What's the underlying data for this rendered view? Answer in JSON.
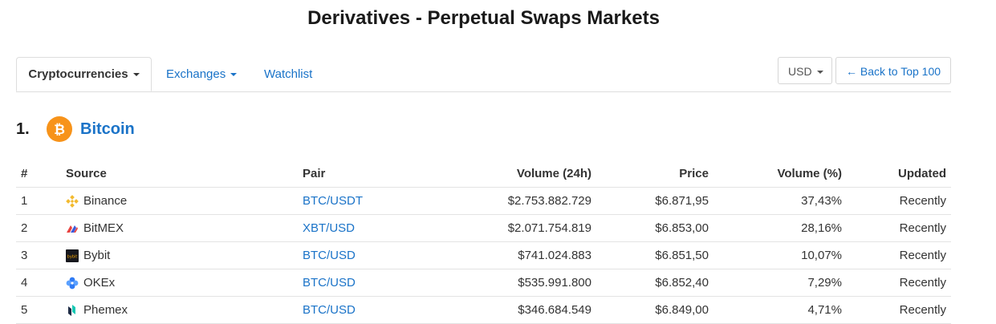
{
  "page": {
    "title": "Derivatives - Perpetual Swaps Markets"
  },
  "nav": {
    "tabs": [
      {
        "label": "Cryptocurrencies",
        "active": true,
        "dropdown": true
      },
      {
        "label": "Exchanges",
        "active": false,
        "dropdown": true
      },
      {
        "label": "Watchlist",
        "active": false,
        "dropdown": false
      }
    ],
    "currency": "USD",
    "back_label": "← Back to Top 100"
  },
  "coin": {
    "rank": "1.",
    "name": "Bitcoin",
    "icon": "bitcoin-icon",
    "color": "#f7931a"
  },
  "table": {
    "headers": {
      "rank": "#",
      "source": "Source",
      "pair": "Pair",
      "volume24h": "Volume (24h)",
      "price": "Price",
      "volume_pct": "Volume (%)",
      "updated": "Updated"
    },
    "rows": [
      {
        "rank": "1",
        "source": "Binance",
        "icon": "binance-icon",
        "pair": "BTC/USDT",
        "volume24h": "$2.753.882.729",
        "price": "$6.871,95",
        "volume_pct": "37,43%",
        "updated": "Recently"
      },
      {
        "rank": "2",
        "source": "BitMEX",
        "icon": "bitmex-icon",
        "pair": "XBT/USD",
        "volume24h": "$2.071.754.819",
        "price": "$6.853,00",
        "volume_pct": "28,16%",
        "updated": "Recently"
      },
      {
        "rank": "3",
        "source": "Bybit",
        "icon": "bybit-icon",
        "pair": "BTC/USD",
        "volume24h": "$741.024.883",
        "price": "$6.851,50",
        "volume_pct": "10,07%",
        "updated": "Recently"
      },
      {
        "rank": "4",
        "source": "OKEx",
        "icon": "okex-icon",
        "pair": "BTC/USD",
        "volume24h": "$535.991.800",
        "price": "$6.852,40",
        "volume_pct": "7,29%",
        "updated": "Recently"
      },
      {
        "rank": "5",
        "source": "Phemex",
        "icon": "phemex-icon",
        "pair": "BTC/USD",
        "volume24h": "$346.684.549",
        "price": "$6.849,00",
        "volume_pct": "4,71%",
        "updated": "Recently"
      }
    ]
  },
  "colors": {
    "link": "#1a73c8",
    "text": "#333333",
    "border": "#dddddd"
  }
}
